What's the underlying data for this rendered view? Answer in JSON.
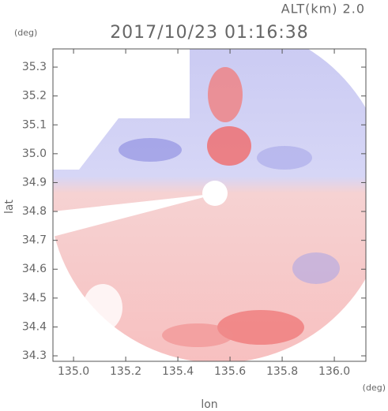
{
  "chart_data": {
    "type": "image",
    "title": "2017/10/23 01:16:38",
    "subtitle": "ALT(km) 2.0",
    "x_label": "lon",
    "x_unit": "(deg)",
    "y_label": "lat",
    "y_unit": "(deg)",
    "xlim": [
      134.921,
      136.121
    ],
    "xticks": [
      {
        "value": 135.0,
        "label": "135.0"
      },
      135.2,
      135.4,
      135.6,
      135.8,
      {
        "value": 136.0,
        "label": "136.0"
      }
    ],
    "ylim": [
      34.281,
      35.363
    ],
    "yticks": [
      34.3,
      34.4,
      34.5,
      34.6,
      34.7,
      34.8,
      34.9,
      {
        "value": 35.0,
        "label": "35.0"
      },
      35.1,
      35.2,
      35.3
    ]
  }
}
